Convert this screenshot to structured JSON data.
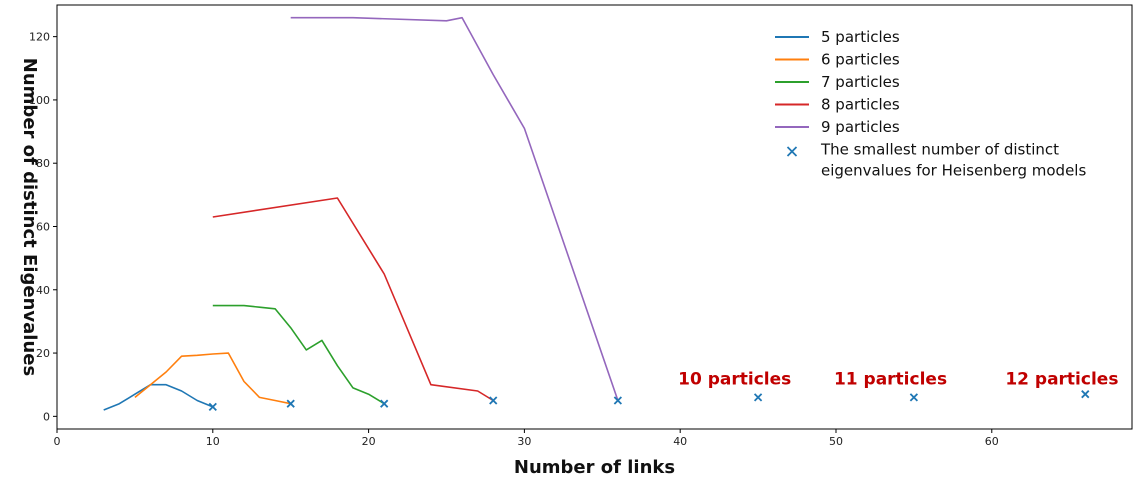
{
  "chart_data": {
    "type": "line",
    "xlabel": "Number of links",
    "ylabel": "Number of distinct Eigenvalues",
    "xlim": [
      0,
      69
    ],
    "ylim": [
      -4,
      130
    ],
    "xticks": [
      0,
      10,
      20,
      30,
      40,
      50,
      60
    ],
    "yticks": [
      0,
      20,
      40,
      60,
      80,
      100,
      120
    ],
    "grid": false,
    "legend_position": "top-right",
    "series": [
      {
        "name": "5 particles",
        "color": "#1f77b4",
        "x": [
          3,
          4,
          5,
          6,
          7,
          8,
          9,
          10
        ],
        "y": [
          2,
          4,
          7,
          10,
          10,
          8,
          5,
          3
        ]
      },
      {
        "name": "6 particles",
        "color": "#ff7f0e",
        "x": [
          5,
          6,
          7,
          8,
          9,
          10,
          11,
          12,
          13,
          14,
          15
        ],
        "y": [
          6,
          10,
          14,
          19,
          19.3,
          19.7,
          20,
          11,
          6,
          5,
          4
        ]
      },
      {
        "name": "7 particles",
        "color": "#2ca02c",
        "x": [
          10,
          11,
          12,
          13,
          14,
          15,
          16,
          17,
          18,
          19,
          20,
          21
        ],
        "y": [
          35,
          35,
          35,
          34.5,
          34,
          28,
          21,
          24,
          16,
          9,
          7,
          4
        ]
      },
      {
        "name": "8 particles",
        "color": "#d62728",
        "x": [
          10,
          18,
          21,
          24,
          27,
          28
        ],
        "y": [
          63,
          69,
          45,
          10,
          8,
          5
        ]
      },
      {
        "name": "9 particles",
        "color": "#9467bd",
        "x": [
          15,
          19,
          25,
          26,
          28,
          30,
          36
        ],
        "y": [
          126,
          126,
          125,
          126,
          108,
          91,
          5
        ]
      }
    ],
    "markers": {
      "name": "The smallest number of distinct eigenvalues for Heisenberg models",
      "legend_lines": [
        "The smallest number of distinct",
        "eigenvalues for Heisenberg models"
      ],
      "color": "#1f77b4",
      "x": [
        10,
        15,
        21,
        28,
        36,
        45,
        55,
        66
      ],
      "y": [
        3,
        4,
        4,
        5,
        5,
        6,
        6,
        7
      ]
    },
    "annotations": [
      {
        "text": "10 particles",
        "x": 43.5,
        "y": 12,
        "color": "#c00000"
      },
      {
        "text": "11 particles",
        "x": 53.5,
        "y": 12,
        "color": "#c00000"
      },
      {
        "text": "12 particles",
        "x": 64.5,
        "y": 12,
        "color": "#c00000"
      }
    ]
  }
}
